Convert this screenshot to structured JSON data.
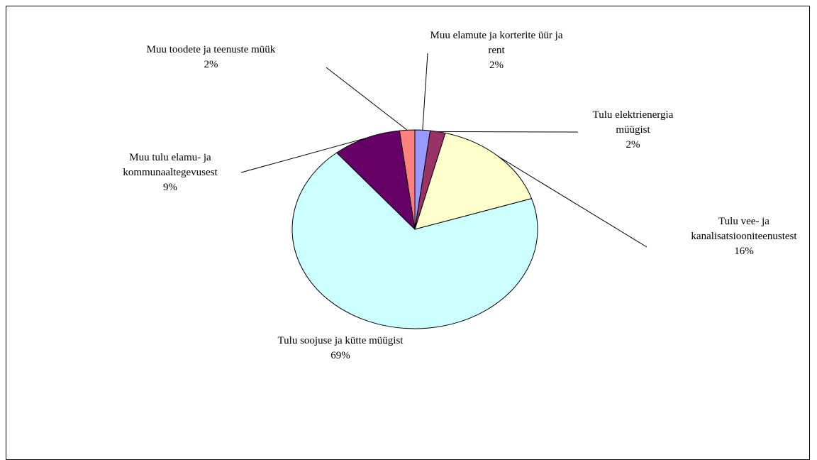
{
  "chart_data": {
    "type": "pie",
    "categories": [
      "Muu elamute ja korterite üür ja rent",
      "Tulu elektrienergia müügist",
      "Tulu vee- ja kanalisatsiooniteenustest",
      "Tulu soojuse ja kütte müügist",
      "Muu tulu elamu- ja kommunaaltegevusest",
      "Muu toodete ja teenuste müük"
    ],
    "values": [
      2,
      2,
      16,
      69,
      9,
      2
    ],
    "value_labels": [
      "2%",
      "2%",
      "16%",
      "69%",
      "9%",
      "2%"
    ],
    "colors": [
      "#9999ff",
      "#993366",
      "#ffffcc",
      "#ccffff",
      "#660066",
      "#ff8080"
    ]
  }
}
